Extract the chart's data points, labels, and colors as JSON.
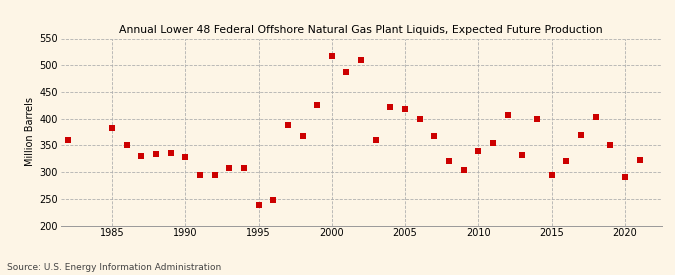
{
  "title": "Annual Lower 48 Federal Offshore Natural Gas Plant Liquids, Expected Future Production",
  "ylabel": "Million Barrels",
  "source": "Source: U.S. Energy Information Administration",
  "bg_color": "#FDF5E6",
  "marker_color": "#CC0000",
  "xlim": [
    1981.5,
    2022.5
  ],
  "ylim": [
    200,
    550
  ],
  "xticks": [
    1985,
    1990,
    1995,
    2000,
    2005,
    2010,
    2015,
    2020
  ],
  "yticks": [
    200,
    250,
    300,
    350,
    400,
    450,
    500,
    550
  ],
  "years": [
    1982,
    1985,
    1986,
    1987,
    1988,
    1989,
    1990,
    1991,
    1992,
    1993,
    1994,
    1995,
    1996,
    1997,
    1998,
    1999,
    2000,
    2001,
    2002,
    2003,
    2004,
    2005,
    2006,
    2007,
    2008,
    2009,
    2010,
    2011,
    2012,
    2013,
    2014,
    2015,
    2016,
    2017,
    2018,
    2019,
    2020,
    2021
  ],
  "values": [
    360,
    383,
    350,
    330,
    333,
    335,
    328,
    295,
    295,
    308,
    308,
    238,
    247,
    388,
    368,
    425,
    517,
    487,
    510,
    360,
    422,
    418,
    400,
    368,
    320,
    303,
    340,
    355,
    407,
    332,
    400,
    295,
    320,
    370,
    404,
    350,
    290,
    322
  ],
  "title_fontsize": 7.8,
  "tick_fontsize": 7.0,
  "ylabel_fontsize": 7.0,
  "source_fontsize": 6.5,
  "marker_size": 14
}
